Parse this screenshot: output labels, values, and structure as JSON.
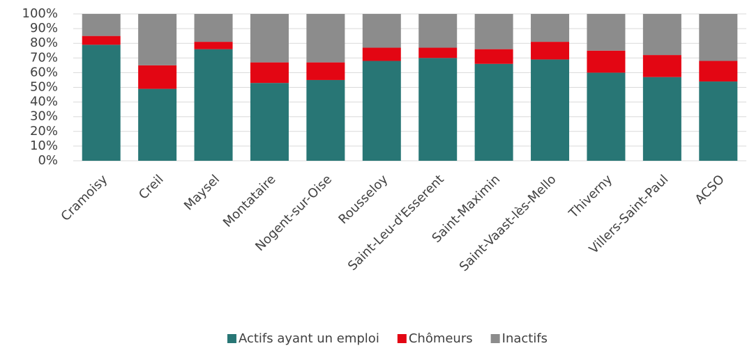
{
  "chart_data": {
    "type": "stacked_bar",
    "categories": [
      "Cramoisy",
      "Creil",
      "Maysel",
      "Montataire",
      "Nogent-sur-Oise",
      "Rousseloy",
      "Saint-Leu-d'Esserent",
      "Saint-Maximin",
      "Saint-Vaast-lès-Mello",
      "Thiverny",
      "Villers-Saint-Paul",
      "ACSO"
    ],
    "series": [
      {
        "name": "Actifs ayant un emploi",
        "color": "#287675",
        "values": [
          79,
          49,
          76,
          53,
          55,
          68,
          70,
          66,
          69,
          60,
          57,
          54
        ]
      },
      {
        "name": "Chômeurs",
        "color": "#e30613",
        "values": [
          6,
          16,
          5,
          14,
          12,
          9,
          7,
          10,
          12,
          15,
          15,
          14
        ]
      },
      {
        "name": "Inactifs",
        "color": "#8c8c8c",
        "values": [
          15,
          35,
          19,
          33,
          33,
          23,
          23,
          24,
          19,
          25,
          28,
          32
        ]
      }
    ],
    "ylim": [
      0,
      100
    ],
    "yticks": [
      {
        "value": 0,
        "label": "0%"
      },
      {
        "value": 10,
        "label": "10%"
      },
      {
        "value": 20,
        "label": "20%"
      },
      {
        "value": 30,
        "label": "30%"
      },
      {
        "value": 40,
        "label": "40%"
      },
      {
        "value": 50,
        "label": "50%"
      },
      {
        "value": 60,
        "label": "60%"
      },
      {
        "value": 70,
        "label": "70%"
      },
      {
        "value": 80,
        "label": "80%"
      },
      {
        "value": 90,
        "label": "90%"
      },
      {
        "value": 100,
        "label": "100%"
      }
    ],
    "grid": true,
    "legend": "bottom"
  }
}
